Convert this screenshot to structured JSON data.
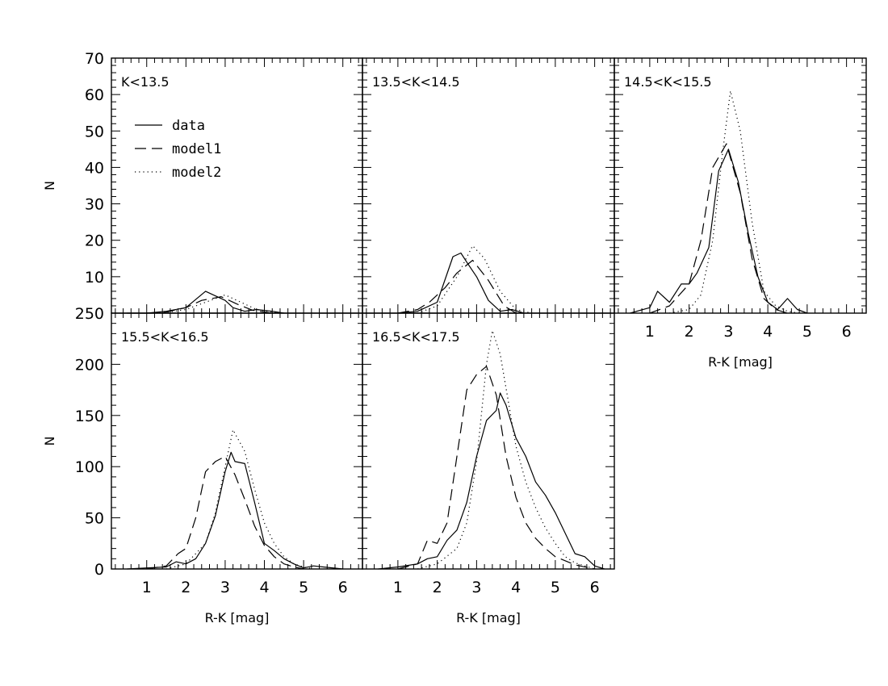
{
  "chart_data": [
    {
      "type": "line",
      "panel_label": "K<13.5",
      "xlabel": "",
      "ylabel": "N",
      "xlim": [
        0.1,
        6.5
      ],
      "ylim": [
        0,
        70
      ],
      "xticks": [],
      "yticks": [
        "10",
        "20",
        "30",
        "40",
        "50",
        "60",
        "70"
      ],
      "legend": {
        "placement": "top-left",
        "entries": [
          "data",
          "model1",
          "model2"
        ]
      },
      "series": [
        {
          "name": "data",
          "style": "solid",
          "x": [
            0.5,
            1.0,
            1.5,
            2.0,
            2.5,
            3.0,
            3.2,
            3.5,
            3.8,
            4.2,
            4.5
          ],
          "y": [
            0,
            0,
            0.5,
            1.5,
            6,
            3.5,
            1.5,
            0.5,
            1,
            0.5,
            0
          ]
        },
        {
          "name": "model1",
          "style": "dashed",
          "x": [
            1.0,
            1.5,
            2.0,
            2.4,
            2.9,
            3.3,
            3.7,
            4.2
          ],
          "y": [
            0,
            0.3,
            1.5,
            3.5,
            4.5,
            2.5,
            0.8,
            0
          ]
        },
        {
          "name": "model2",
          "style": "dotted",
          "x": [
            1.0,
            1.5,
            2.0,
            2.5,
            3.0,
            3.4,
            3.8,
            4.4
          ],
          "y": [
            0,
            0.2,
            1,
            3,
            5,
            3,
            1,
            0
          ]
        }
      ]
    },
    {
      "type": "line",
      "panel_label": "13.5<K<14.5",
      "xlabel": "",
      "ylabel": "",
      "xlim": [
        0.1,
        6.5
      ],
      "ylim": [
        0,
        70
      ],
      "xticks": [],
      "yticks": [],
      "series": [
        {
          "name": "data",
          "style": "solid",
          "x": [
            1.0,
            1.5,
            2.0,
            2.4,
            2.6,
            2.75,
            3.0,
            3.3,
            3.6,
            3.9,
            4.2
          ],
          "y": [
            0,
            0.5,
            3,
            15.5,
            16.5,
            14,
            10,
            3.5,
            0.5,
            1,
            0
          ]
        },
        {
          "name": "model1",
          "style": "dashed",
          "x": [
            1.0,
            1.5,
            1.8,
            2.2,
            2.5,
            2.9,
            3.3,
            3.7,
            4.0
          ],
          "y": [
            0,
            1,
            3,
            7,
            11,
            14.5,
            9,
            2,
            0
          ]
        },
        {
          "name": "model2",
          "style": "dotted",
          "x": [
            1.5,
            2.0,
            2.5,
            2.9,
            3.2,
            3.6,
            4.0,
            4.4
          ],
          "y": [
            0,
            2,
            10,
            18.5,
            15,
            6,
            1,
            0
          ]
        }
      ]
    },
    {
      "type": "line",
      "panel_label": "14.5<K<15.5",
      "xlabel": "R-K [mag]",
      "ylabel": "",
      "xlim": [
        0.1,
        6.5
      ],
      "ylim": [
        0,
        70
      ],
      "xticks": [
        "1",
        "2",
        "3",
        "4",
        "5",
        "6"
      ],
      "yticks": [],
      "series": [
        {
          "name": "data",
          "style": "solid",
          "x": [
            0.5,
            1.0,
            1.2,
            1.5,
            1.8,
            2.0,
            2.2,
            2.5,
            2.75,
            3.0,
            3.25,
            3.5,
            3.75,
            4.0,
            4.25,
            4.5,
            4.75,
            5.0
          ],
          "y": [
            0,
            1.5,
            6,
            3,
            8,
            8,
            11,
            18,
            39,
            45,
            36,
            22,
            10,
            3,
            1,
            4,
            1,
            0
          ]
        },
        {
          "name": "model1",
          "style": "dashed",
          "x": [
            1.0,
            1.5,
            2.0,
            2.3,
            2.6,
            2.95,
            3.3,
            3.6,
            3.9,
            4.2,
            4.5
          ],
          "y": [
            0,
            2,
            8,
            20,
            40,
            46.5,
            33,
            15,
            4,
            1,
            0
          ]
        },
        {
          "name": "model2",
          "style": "dotted",
          "x": [
            1.5,
            2.0,
            2.3,
            2.6,
            2.85,
            3.05,
            3.3,
            3.6,
            3.9,
            4.2,
            4.5,
            4.8
          ],
          "y": [
            0,
            1,
            5,
            20,
            44,
            61,
            50,
            25,
            6,
            2,
            0.5,
            0
          ]
        }
      ]
    },
    {
      "type": "line",
      "panel_label": "15.5<K<16.5",
      "xlabel": "R-K [mag]",
      "ylabel": "N",
      "xlim": [
        0.1,
        6.5
      ],
      "ylim": [
        0,
        250
      ],
      "xticks": [
        "1",
        "2",
        "3",
        "4",
        "5",
        "6"
      ],
      "yticks": [
        "0",
        "50",
        "100",
        "150",
        "200",
        "250"
      ],
      "series": [
        {
          "name": "data",
          "style": "solid",
          "x": [
            0.5,
            1.0,
            1.5,
            1.75,
            2.0,
            2.25,
            2.5,
            2.75,
            3.0,
            3.15,
            3.25,
            3.5,
            3.75,
            4.0,
            4.25,
            4.5,
            4.75,
            5.0,
            5.25,
            5.5,
            6.0
          ],
          "y": [
            0,
            1,
            2,
            7,
            5,
            10,
            25,
            52,
            95,
            114,
            105,
            103,
            65,
            25,
            18,
            10,
            5,
            1,
            3,
            2,
            0
          ]
        },
        {
          "name": "model1",
          "style": "dashed",
          "x": [
            1.0,
            1.5,
            1.8,
            2.0,
            2.25,
            2.5,
            2.75,
            3.0,
            3.25,
            3.5,
            3.75,
            4.0,
            4.25,
            4.5,
            4.75,
            5.0
          ],
          "y": [
            0,
            3,
            15,
            20,
            50,
            95,
            105,
            110,
            92,
            68,
            42,
            23,
            12,
            5,
            2,
            0
          ]
        },
        {
          "name": "model2",
          "style": "dotted",
          "x": [
            1.5,
            2.0,
            2.5,
            2.75,
            3.0,
            3.2,
            3.5,
            3.75,
            4.0,
            4.25,
            4.5,
            4.75,
            5.0,
            5.25
          ],
          "y": [
            0,
            5,
            25,
            55,
            100,
            136,
            115,
            78,
            45,
            25,
            12,
            5,
            2,
            0
          ]
        }
      ]
    },
    {
      "type": "line",
      "panel_label": "16.5<K<17.5",
      "xlabel": "R-K [mag]",
      "ylabel": "",
      "xlim": [
        0.1,
        6.5
      ],
      "ylim": [
        0,
        250
      ],
      "xticks": [
        "1",
        "2",
        "3",
        "4",
        "5",
        "6"
      ],
      "yticks": [],
      "series": [
        {
          "name": "data",
          "style": "solid",
          "x": [
            0.5,
            1.0,
            1.5,
            1.75,
            2.0,
            2.25,
            2.5,
            2.75,
            3.0,
            3.25,
            3.5,
            3.6,
            3.75,
            4.0,
            4.25,
            4.5,
            4.75,
            5.0,
            5.25,
            5.5,
            5.75,
            6.0,
            6.25
          ],
          "y": [
            0,
            2,
            5,
            10,
            12,
            28,
            38,
            65,
            110,
            145,
            155,
            172,
            160,
            128,
            110,
            85,
            72,
            55,
            35,
            15,
            12,
            3,
            0
          ]
        },
        {
          "name": "model1",
          "style": "dashed",
          "x": [
            1.0,
            1.5,
            1.75,
            2.0,
            2.25,
            2.5,
            2.75,
            3.0,
            3.25,
            3.5,
            3.75,
            4.0,
            4.25,
            4.5,
            4.75,
            5.0,
            5.5,
            6.0
          ],
          "y": [
            0,
            5,
            28,
            25,
            45,
            110,
            175,
            190,
            198,
            170,
            110,
            70,
            45,
            30,
            20,
            12,
            4,
            0
          ]
        },
        {
          "name": "model2",
          "style": "dotted",
          "x": [
            1.5,
            2.0,
            2.5,
            2.75,
            3.0,
            3.25,
            3.4,
            3.6,
            3.8,
            4.0,
            4.25,
            4.5,
            4.75,
            5.0,
            5.25,
            5.5,
            6.0
          ],
          "y": [
            0,
            5,
            20,
            45,
            105,
            200,
            233,
            210,
            165,
            120,
            85,
            60,
            40,
            25,
            12,
            6,
            0
          ]
        }
      ]
    }
  ]
}
